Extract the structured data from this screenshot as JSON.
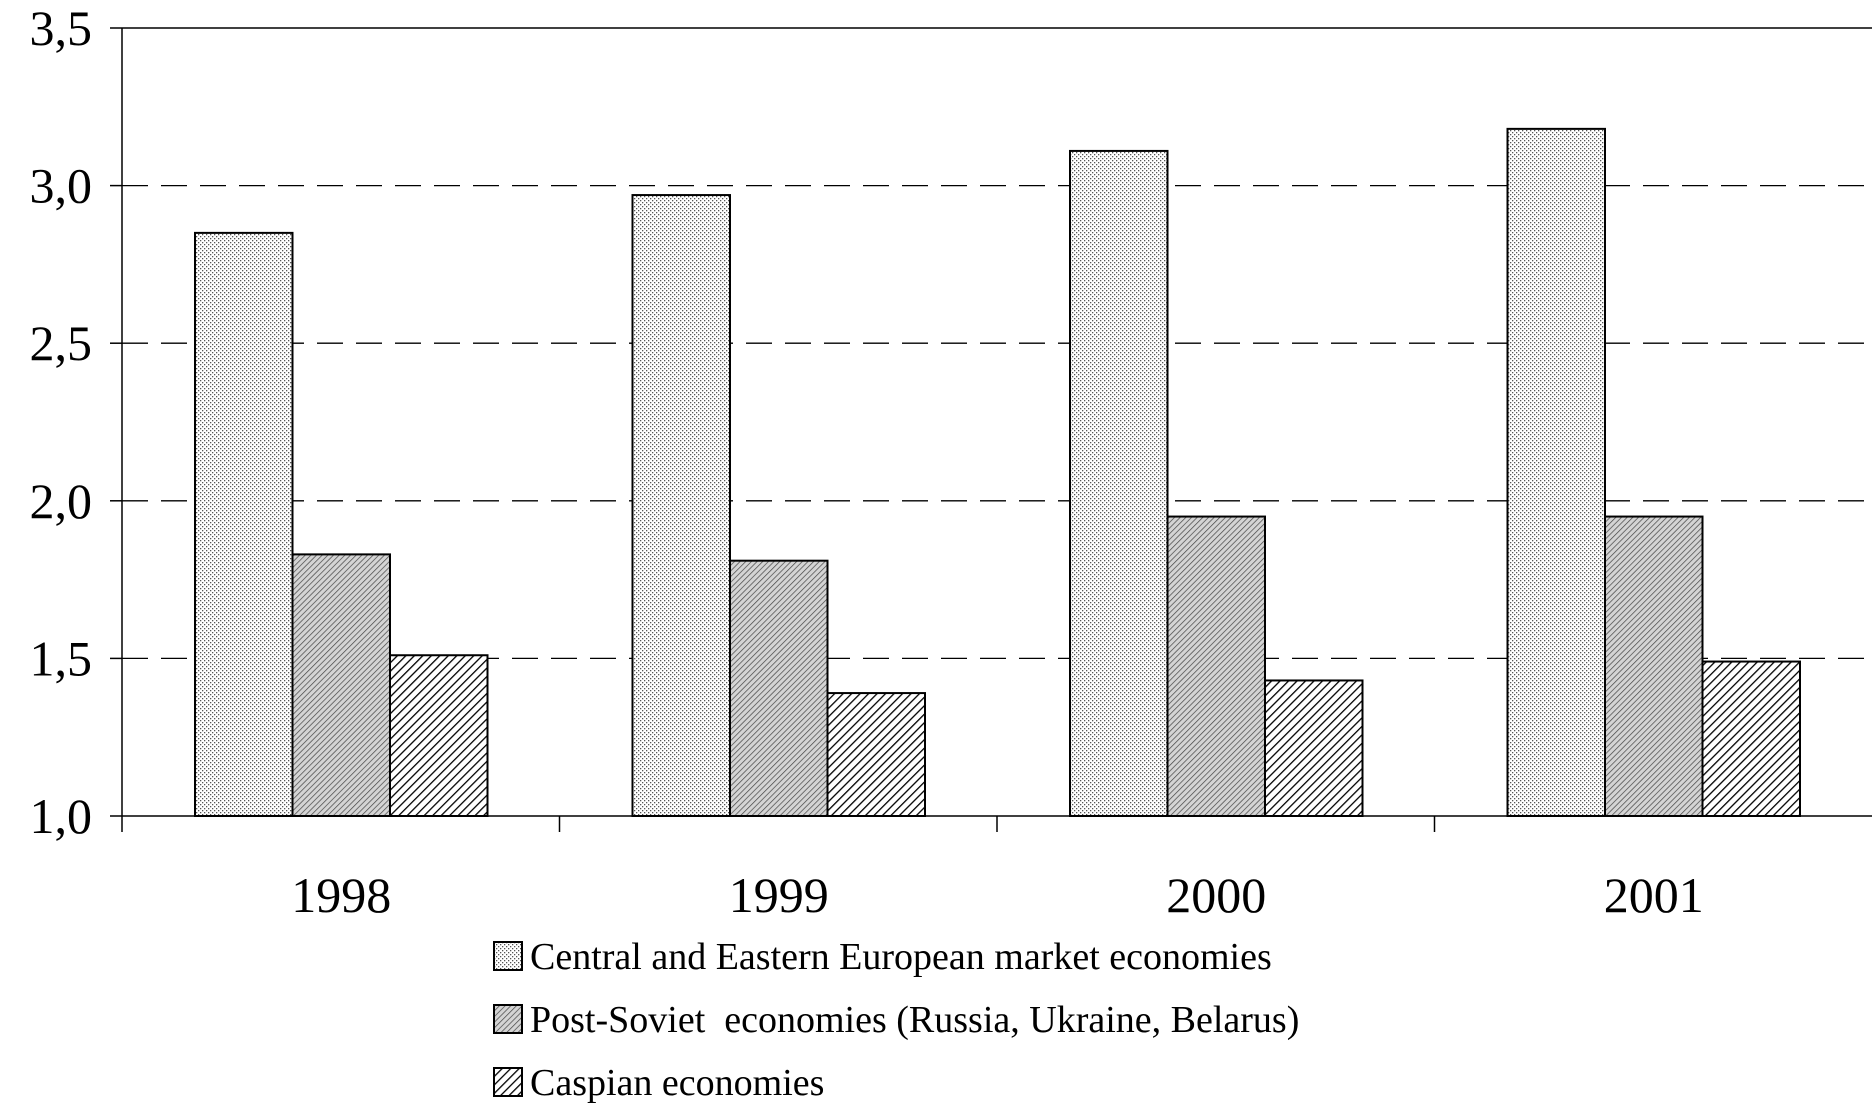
{
  "chart_data": {
    "type": "bar",
    "categories": [
      "1998",
      "1999",
      "2000",
      "2001"
    ],
    "series": [
      {
        "name": "Central and Eastern European market economies",
        "values": [
          2.85,
          2.97,
          3.11,
          3.18
        ],
        "pattern": "fine-dots",
        "color": "#f2f2f2"
      },
      {
        "name": "Post-Soviet  economies (Russia, Ukraine, Belarus)",
        "values": [
          1.83,
          1.81,
          1.95,
          1.95
        ],
        "pattern": "dense-diagonal",
        "color": "#c8c8c8"
      },
      {
        "name": "Caspian economies",
        "values": [
          1.51,
          1.39,
          1.43,
          1.49
        ],
        "pattern": "diagonal-hatch",
        "color": "#9a9a9a"
      }
    ],
    "y_ticks": [
      "1,0",
      "1,5",
      "2,0",
      "2,5",
      "3,0",
      "3,5"
    ],
    "ylim": [
      1.0,
      3.5
    ],
    "grid": "dashed horizontal at 1,5 2,0 2,5 3,0",
    "legend_position": "bottom-center"
  }
}
